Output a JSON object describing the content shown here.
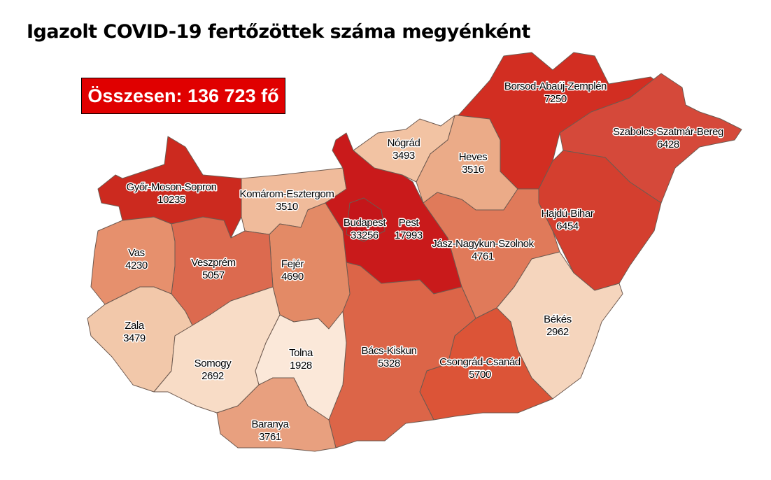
{
  "title": "Igazolt COVID-19 fertőzöttek száma megyénként",
  "total_label": "Összesen: 136 723 fő",
  "counties": {
    "gyor": {
      "name": "Győr-Moson-Sopron",
      "value": "10235",
      "color": "#cc2a1f"
    },
    "komarom": {
      "name": "Komárom-Esztergom",
      "value": "3510",
      "color": "#f0bb9b"
    },
    "budapest": {
      "name": "Budapest",
      "value": "33256",
      "color": "#c4161a"
    },
    "pest": {
      "name": "Pest",
      "value": "17993",
      "color": "#c91a1b"
    },
    "nograd": {
      "name": "Nógrád",
      "value": "3493",
      "color": "#f2c3a3"
    },
    "heves": {
      "name": "Heves",
      "value": "3516",
      "color": "#ebab88"
    },
    "borsod": {
      "name": "Borsod-Abaúj-Zemplén",
      "value": "7250",
      "color": "#d22e22"
    },
    "szabolcs": {
      "name": "Szabolcs-Szatmár-Bereg",
      "value": "6428",
      "color": "#d5493a"
    },
    "hajdu": {
      "name": "Hajdú-Bihar",
      "value": "6454",
      "color": "#d43f2f"
    },
    "jasz": {
      "name": "Jász-Nagykun-Szolnok",
      "value": "4761",
      "color": "#e07a5a"
    },
    "bekes": {
      "name": "Békés",
      "value": "2962",
      "color": "#f5d5bd"
    },
    "csongrad": {
      "name": "Csongrád-Csanád",
      "value": "5700",
      "color": "#dc5437"
    },
    "bacs": {
      "name": "Bács-Kiskun",
      "value": "5328",
      "color": "#dc6548"
    },
    "fejer": {
      "name": "Fejér",
      "value": "4690",
      "color": "#e38a66"
    },
    "veszprem": {
      "name": "Veszprém",
      "value": "5057",
      "color": "#dc6a4f"
    },
    "vas": {
      "name": "Vas",
      "value": "4230",
      "color": "#e6906d"
    },
    "zala": {
      "name": "Zala",
      "value": "3479",
      "color": "#f2c8aa"
    },
    "somogy": {
      "name": "Somogy",
      "value": "2692",
      "color": "#f8dcc6"
    },
    "tolna": {
      "name": "Tolna",
      "value": "1928",
      "color": "#fbe8d9"
    },
    "baranya": {
      "name": "Baranya",
      "value": "3761",
      "color": "#e8a07f"
    }
  }
}
